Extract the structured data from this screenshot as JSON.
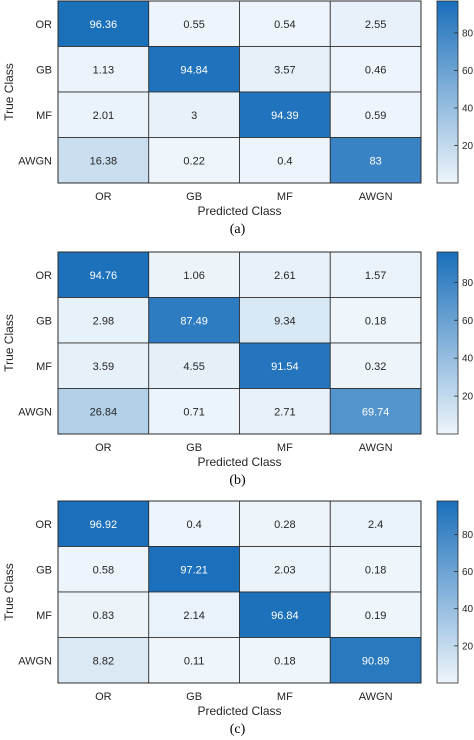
{
  "chart_data": [
    {
      "type": "heatmap",
      "caption": "(a)",
      "xlabel": "Predicted Class",
      "ylabel": "True Class",
      "x_categories": [
        "OR",
        "GB",
        "MF",
        "AWGN"
      ],
      "y_categories": [
        "OR",
        "GB",
        "MF",
        "AWGN"
      ],
      "values": [
        [
          96.36,
          0.55,
          0.54,
          2.55
        ],
        [
          1.13,
          94.84,
          3.57,
          0.46
        ],
        [
          2.01,
          3,
          94.39,
          0.59
        ],
        [
          16.38,
          0.22,
          0.4,
          83
        ]
      ],
      "colorbar_ticks": [
        20,
        40,
        60,
        80
      ],
      "colorbar_range": [
        0,
        97
      ]
    },
    {
      "type": "heatmap",
      "caption": "(b)",
      "xlabel": "Predicted Class",
      "ylabel": "True Class",
      "x_categories": [
        "OR",
        "GB",
        "MF",
        "AWGN"
      ],
      "y_categories": [
        "OR",
        "GB",
        "MF",
        "AWGN"
      ],
      "values": [
        [
          94.76,
          1.06,
          2.61,
          1.57
        ],
        [
          2.98,
          87.49,
          9.34,
          0.18
        ],
        [
          3.59,
          4.55,
          91.54,
          0.32
        ],
        [
          26.84,
          0.71,
          2.71,
          69.74
        ]
      ],
      "colorbar_ticks": [
        20,
        40,
        60,
        80
      ],
      "colorbar_range": [
        0,
        96
      ]
    },
    {
      "type": "heatmap",
      "caption": "(c)",
      "xlabel": "Predicted Class",
      "ylabel": "True Class",
      "x_categories": [
        "OR",
        "GB",
        "MF",
        "AWGN"
      ],
      "y_categories": [
        "OR",
        "GB",
        "MF",
        "AWGN"
      ],
      "values": [
        [
          96.92,
          0.4,
          0.28,
          2.4
        ],
        [
          0.58,
          97.21,
          2.03,
          0.18
        ],
        [
          0.83,
          2.14,
          96.84,
          0.19
        ],
        [
          8.82,
          0.11,
          0.18,
          90.89
        ]
      ],
      "colorbar_ticks": [
        20,
        40,
        60,
        80
      ],
      "colorbar_range": [
        0,
        98
      ]
    }
  ],
  "colors": {
    "low": "#eef5fb",
    "high": "#1a6fba",
    "grid": "#2b2b2b",
    "text_dark": "#262626",
    "text_light": "#ffffff"
  }
}
